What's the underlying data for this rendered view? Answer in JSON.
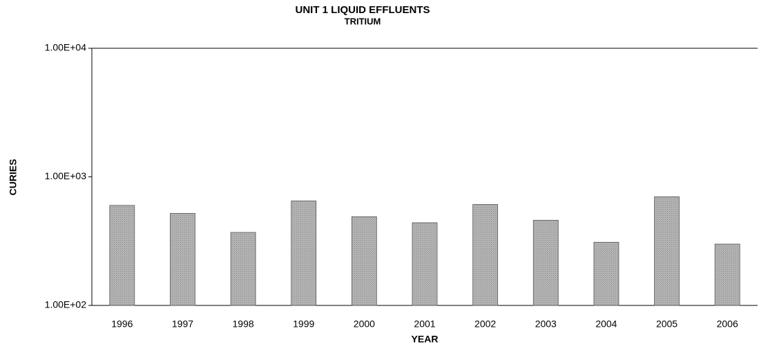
{
  "chart_data": {
    "type": "bar",
    "title": "UNIT 1 LIQUID EFFLUENTS",
    "subtitle": "TRITIUM",
    "x_label": "YEAR",
    "y_label": "CURIES",
    "categories": [
      "1996",
      "1997",
      "1998",
      "1999",
      "2000",
      "2001",
      "2002",
      "2003",
      "2004",
      "2005",
      "2006"
    ],
    "values": [
      600,
      520,
      370,
      650,
      490,
      440,
      610,
      460,
      310,
      700,
      300
    ],
    "color": "#b4b4b4",
    "ylog": true,
    "ylim": [
      100,
      10000
    ],
    "yticks": [
      {
        "value": 100,
        "label": "1.00E+02"
      },
      {
        "value": 1000,
        "label": "1.00E+03"
      },
      {
        "value": 10000,
        "label": "1.00E+04"
      }
    ],
    "grid": false
  }
}
